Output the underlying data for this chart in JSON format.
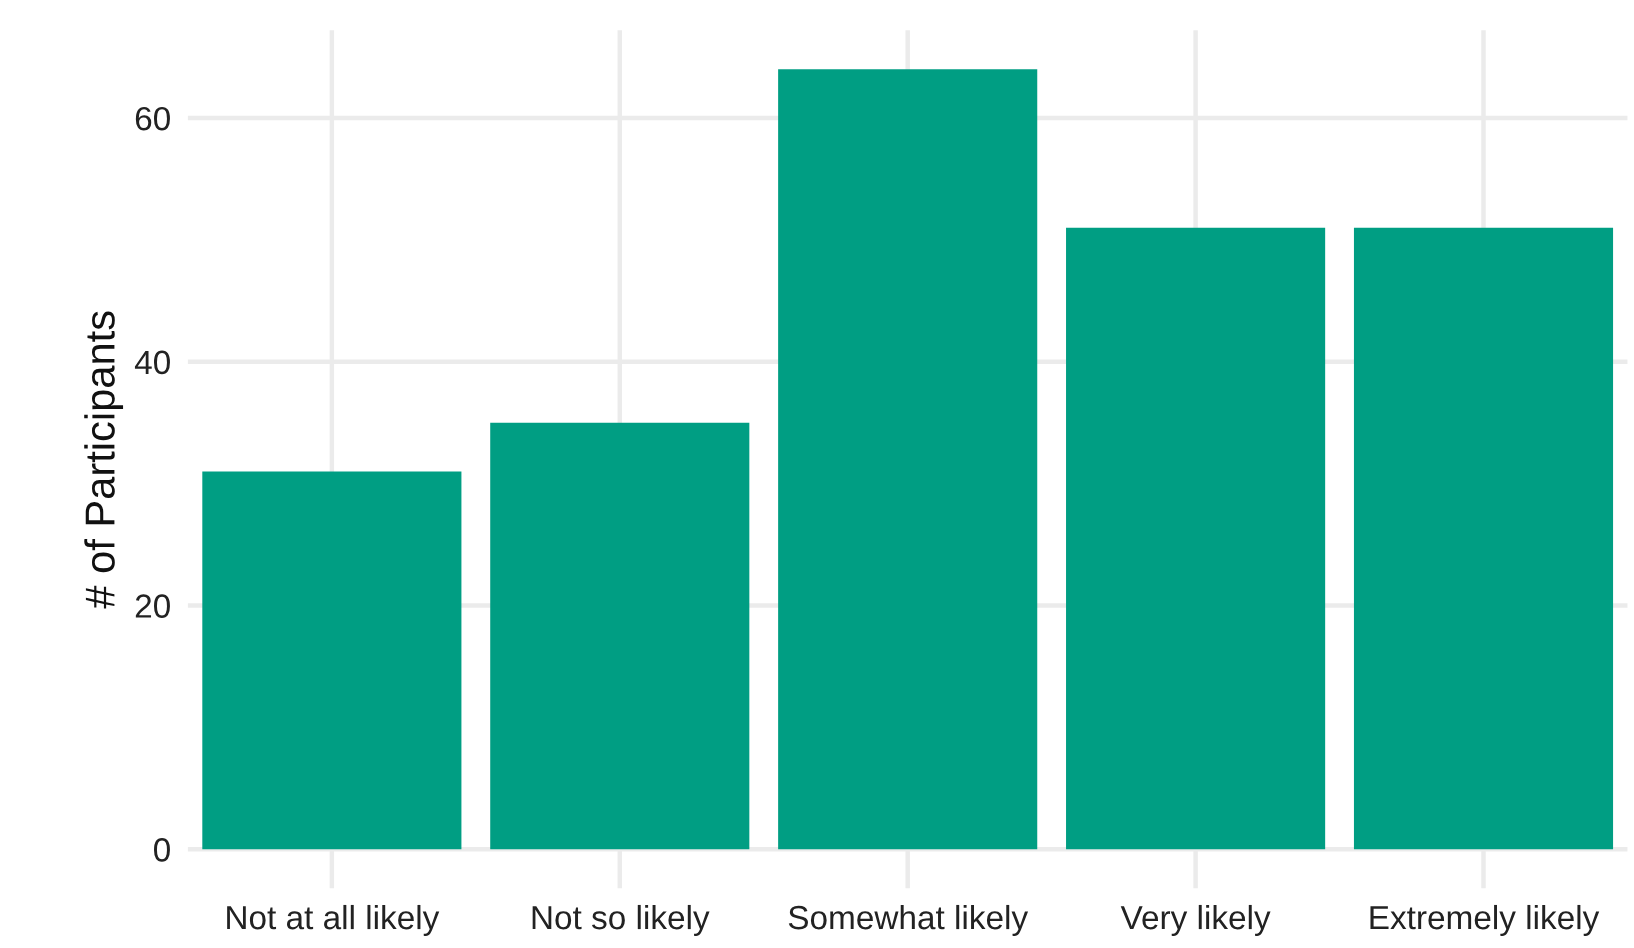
{
  "chart_data": {
    "type": "bar",
    "ylabel": "# of Participants",
    "categories": [
      "Not at all likely",
      "Not so likely",
      "Somewhat likely",
      "Very likely",
      "Extremely likely"
    ],
    "values": [
      31,
      35,
      64,
      51,
      51
    ],
    "color": "#009e83",
    "ylim": [
      -3.2,
      67.2
    ],
    "yticks": [
      0,
      20,
      40,
      60
    ],
    "grid": true,
    "legend": false
  }
}
